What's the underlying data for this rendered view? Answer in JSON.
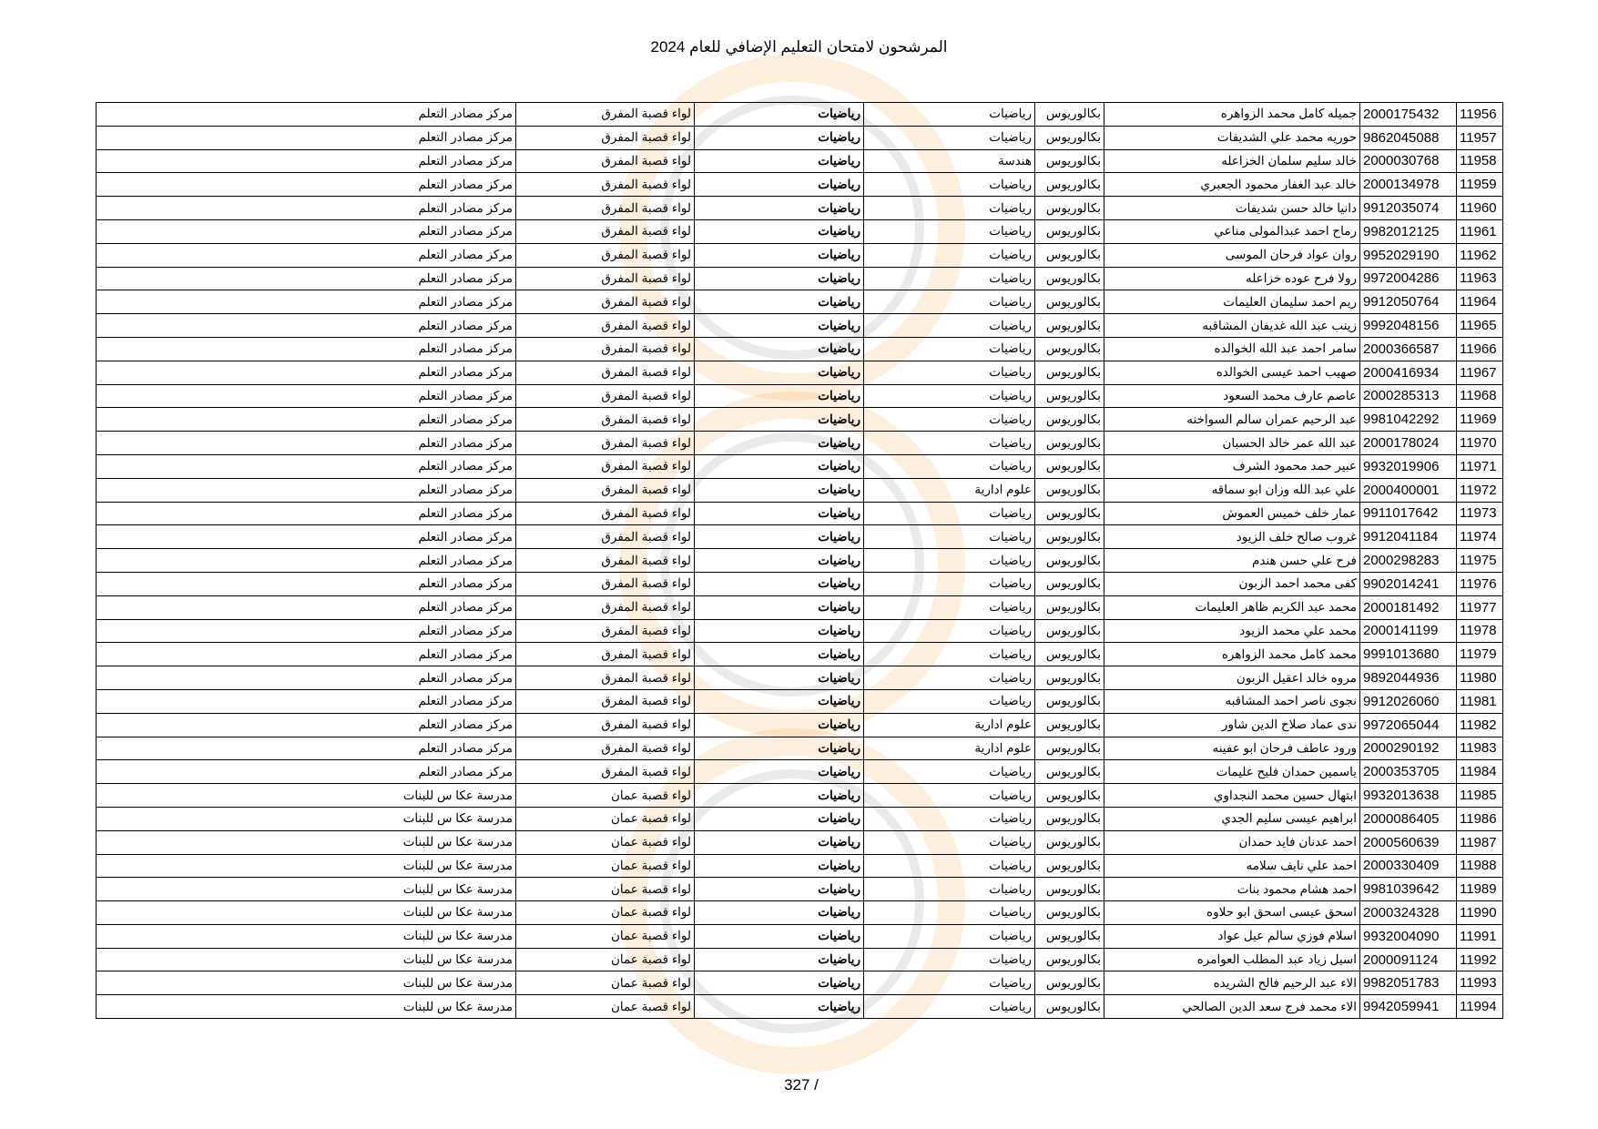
{
  "title": "المرشحون لامتحان التعليم الإضافي للعام 2024",
  "page_number": "327 /",
  "watermark": "clock-logo-watermark",
  "rows": [
    [
      "11956",
      "2000175432",
      "جميله كامل محمد الزواهره",
      "بكالوريوس",
      "رياضيات",
      "رياضيات",
      "لواء قصبة المفرق",
      "مركز مصادر التعلم"
    ],
    [
      "11957",
      "9862045088",
      "حوريه محمد علي الشديفات",
      "بكالوريوس",
      "رياضيات",
      "رياضيات",
      "لواء قصبة المفرق",
      "مركز مصادر التعلم"
    ],
    [
      "11958",
      "2000030768",
      "خالد سليم سلمان الخزاعله",
      "بكالوريوس",
      "هندسة",
      "رياضيات",
      "لواء قصبة المفرق",
      "مركز مصادر التعلم"
    ],
    [
      "11959",
      "2000134978",
      "خالد عبد الغفار محمود الجعبري",
      "بكالوريوس",
      "رياضيات",
      "رياضيات",
      "لواء قصبة المفرق",
      "مركز مصادر التعلم"
    ],
    [
      "11960",
      "9912035074",
      "دانيا خالد حسن شديفات",
      "بكالوريوس",
      "رياضيات",
      "رياضيات",
      "لواء قصبة المفرق",
      "مركز مصادر التعلم"
    ],
    [
      "11961",
      "9982012125",
      "رماح احمد عبدالمولى مناعي",
      "بكالوريوس",
      "رياضيات",
      "رياضيات",
      "لواء قصبة المفرق",
      "مركز مصادر التعلم"
    ],
    [
      "11962",
      "9952029190",
      "روان عواد فرحان الموسى",
      "بكالوريوس",
      "رياضيات",
      "رياضيات",
      "لواء قصبة المفرق",
      "مركز مصادر التعلم"
    ],
    [
      "11963",
      "9972004286",
      "رولا فرح عوده خزاعله",
      "بكالوريوس",
      "رياضيات",
      "رياضيات",
      "لواء قصبة المفرق",
      "مركز مصادر التعلم"
    ],
    [
      "11964",
      "9912050764",
      "ريم احمد سليمان العليمات",
      "بكالوريوس",
      "رياضيات",
      "رياضيات",
      "لواء قصبة المفرق",
      "مركز مصادر التعلم"
    ],
    [
      "11965",
      "9992048156",
      "زينب عبد الله غديفان المشاقبه",
      "بكالوريوس",
      "رياضيات",
      "رياضيات",
      "لواء قصبة المفرق",
      "مركز مصادر التعلم"
    ],
    [
      "11966",
      "2000366587",
      "سامر احمد عبد الله الخوالده",
      "بكالوريوس",
      "رياضيات",
      "رياضيات",
      "لواء قصبة المفرق",
      "مركز مصادر التعلم"
    ],
    [
      "11967",
      "2000416934",
      "صهيب احمد عيسى الخوالده",
      "بكالوريوس",
      "رياضيات",
      "رياضيات",
      "لواء قصبة المفرق",
      "مركز مصادر التعلم"
    ],
    [
      "11968",
      "2000285313",
      "عاصم عارف محمد السعود",
      "بكالوريوس",
      "رياضيات",
      "رياضيات",
      "لواء قصبة المفرق",
      "مركز مصادر التعلم"
    ],
    [
      "11969",
      "9981042292",
      "عبد الرحيم عمران سالم السواخنه",
      "بكالوريوس",
      "رياضيات",
      "رياضيات",
      "لواء قصبة المفرق",
      "مركز مصادر التعلم"
    ],
    [
      "11970",
      "2000178024",
      "عبد الله عمر خالد الحسبان",
      "بكالوريوس",
      "رياضيات",
      "رياضيات",
      "لواء قصبة المفرق",
      "مركز مصادر التعلم"
    ],
    [
      "11971",
      "9932019906",
      "عبير حمد محمود الشرف",
      "بكالوريوس",
      "رياضيات",
      "رياضيات",
      "لواء قصبة المفرق",
      "مركز مصادر التعلم"
    ],
    [
      "11972",
      "2000400001",
      "علي عبد الله وزان ابو سماقه",
      "بكالوريوس",
      "علوم ادارية",
      "رياضيات",
      "لواء قصبة المفرق",
      "مركز مصادر التعلم"
    ],
    [
      "11973",
      "9911017642",
      "عمار خلف خميس العموش",
      "بكالوريوس",
      "رياضيات",
      "رياضيات",
      "لواء قصبة المفرق",
      "مركز مصادر التعلم"
    ],
    [
      "11974",
      "9912041184",
      "غروب صالح خلف الزيود",
      "بكالوريوس",
      "رياضيات",
      "رياضيات",
      "لواء قصبة المفرق",
      "مركز مصادر التعلم"
    ],
    [
      "11975",
      "2000298283",
      "فرح علي حسن هندم",
      "بكالوريوس",
      "رياضيات",
      "رياضيات",
      "لواء قصبة المفرق",
      "مركز مصادر التعلم"
    ],
    [
      "11976",
      "9902014241",
      "كفى محمد احمد الزبون",
      "بكالوريوس",
      "رياضيات",
      "رياضيات",
      "لواء قصبة المفرق",
      "مركز مصادر التعلم"
    ],
    [
      "11977",
      "2000181492",
      "محمد عبد الكريم ظاهر العليمات",
      "بكالوريوس",
      "رياضيات",
      "رياضيات",
      "لواء قصبة المفرق",
      "مركز مصادر التعلم"
    ],
    [
      "11978",
      "2000141199",
      "محمد علي محمد الزيود",
      "بكالوريوس",
      "رياضيات",
      "رياضيات",
      "لواء قصبة المفرق",
      "مركز مصادر التعلم"
    ],
    [
      "11979",
      "9991013680",
      "محمد كامل محمد الزواهره",
      "بكالوريوس",
      "رياضيات",
      "رياضيات",
      "لواء قصبة المفرق",
      "مركز مصادر التعلم"
    ],
    [
      "11980",
      "9892044936",
      "مروه خالد اعقيل الزبون",
      "بكالوريوس",
      "رياضيات",
      "رياضيات",
      "لواء قصبة المفرق",
      "مركز مصادر التعلم"
    ],
    [
      "11981",
      "9912026060",
      "نجوى ناصر احمد المشاقبه",
      "بكالوريوس",
      "رياضيات",
      "رياضيات",
      "لواء قصبة المفرق",
      "مركز مصادر التعلم"
    ],
    [
      "11982",
      "9972065044",
      "ندى عماد صلاح الدين شاور",
      "بكالوريوس",
      "علوم ادارية",
      "رياضيات",
      "لواء قصبة المفرق",
      "مركز مصادر التعلم"
    ],
    [
      "11983",
      "2000290192",
      "ورود عاطف فرحان ابو عفينه",
      "بكالوريوس",
      "علوم ادارية",
      "رياضيات",
      "لواء قصبة المفرق",
      "مركز مصادر التعلم"
    ],
    [
      "11984",
      "2000353705",
      "ياسمين حمدان فليح عليمات",
      "بكالوريوس",
      "رياضيات",
      "رياضيات",
      "لواء قصبة المفرق",
      "مركز مصادر التعلم"
    ],
    [
      "11985",
      "9932013638",
      "ابتهال حسين محمد النجداوي",
      "بكالوريوس",
      "رياضيات",
      "رياضيات",
      "لواء قصبة عمان",
      "مدرسة عكا س للبنات"
    ],
    [
      "11986",
      "2000086405",
      "ابراهيم عيسى سليم الجدي",
      "بكالوريوس",
      "رياضيات",
      "رياضيات",
      "لواء قصبة عمان",
      "مدرسة عكا س للبنات"
    ],
    [
      "11987",
      "2000560639",
      "احمد عدنان فايد حمدان",
      "بكالوريوس",
      "رياضيات",
      "رياضيات",
      "لواء قصبة عمان",
      "مدرسة عكا س للبنات"
    ],
    [
      "11988",
      "2000330409",
      "احمد علي نايف سلامه",
      "بكالوريوس",
      "رياضيات",
      "رياضيات",
      "لواء قصبة عمان",
      "مدرسة عكا س للبنات"
    ],
    [
      "11989",
      "9981039642",
      "احمد هشام محمود بنات",
      "بكالوريوس",
      "رياضيات",
      "رياضيات",
      "لواء قصبة عمان",
      "مدرسة عكا س للبنات"
    ],
    [
      "11990",
      "2000324328",
      "اسحق عيسى اسحق ابو حلاوه",
      "بكالوريوس",
      "رياضيات",
      "رياضيات",
      "لواء قصبة عمان",
      "مدرسة عكا س للبنات"
    ],
    [
      "11991",
      "9932004090",
      "اسلام فوزي سالم عيل عواد",
      "بكالوريوس",
      "رياضيات",
      "رياضيات",
      "لواء قصبة عمان",
      "مدرسة عكا س للبنات"
    ],
    [
      "11992",
      "2000091124",
      "اسيل زياد عبد المطلب العوامره",
      "بكالوريوس",
      "رياضيات",
      "رياضيات",
      "لواء قصبة عمان",
      "مدرسة عكا س للبنات"
    ],
    [
      "11993",
      "9982051783",
      "الاء عبد الرحيم فالح الشريده",
      "بكالوريوس",
      "رياضيات",
      "رياضيات",
      "لواء قصبة عمان",
      "مدرسة عكا س للبنات"
    ],
    [
      "11994",
      "9942059941",
      "الاء محمد فرج سعد الدين الصالحي",
      "بكالوريوس",
      "رياضيات",
      "رياضيات",
      "لواء قصبة عمان",
      "مدرسة عكا س للبنات"
    ]
  ]
}
